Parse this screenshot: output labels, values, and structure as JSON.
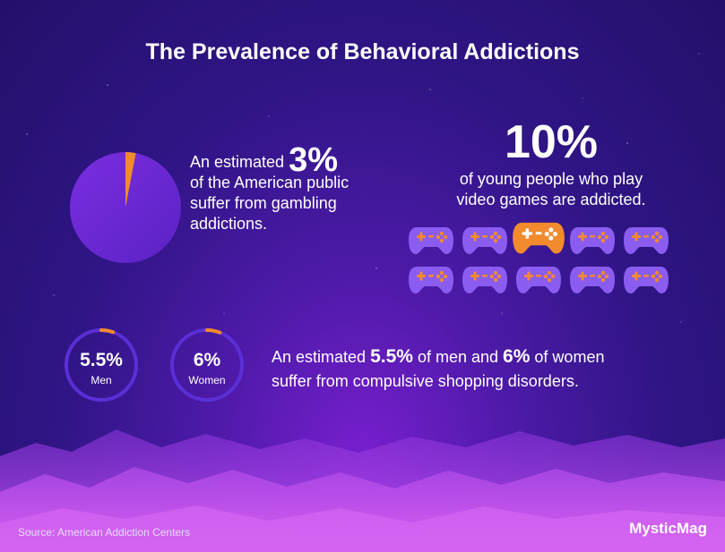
{
  "title": "The Prevalence of Behavioral Addictions",
  "gambling": {
    "lead": "An estimated",
    "percent": "3%",
    "fraction": 0.03,
    "line2": "of the American public",
    "line3": "suffer from gambling",
    "line4": "addictions."
  },
  "games": {
    "percent": "10%",
    "line1": "of young people who play",
    "line2": "video games are addicted.",
    "total_icons": 10,
    "highlighted_index": 2,
    "icon": "gamepad-icon",
    "icon_color": "#8a5cf0",
    "highlight_color": "#f28a2e"
  },
  "shopping": {
    "men": {
      "value": "5.5%",
      "label": "Men",
      "fraction": 0.055
    },
    "women": {
      "value": "6%",
      "label": "Women",
      "fraction": 0.06
    },
    "text_lead": "An estimated",
    "men_pct": "5.5%",
    "text_mid": "of men and",
    "women_pct": "6%",
    "text_end": "of women",
    "line2": "suffer from compulsive shopping disorders."
  },
  "source": "Source: American Addiction Centers",
  "brand": "MysticMag",
  "colors": {
    "accent": "#f28a2e",
    "purple_ring": "#5b2fd6",
    "pie_fill": "#6a2ad8"
  }
}
